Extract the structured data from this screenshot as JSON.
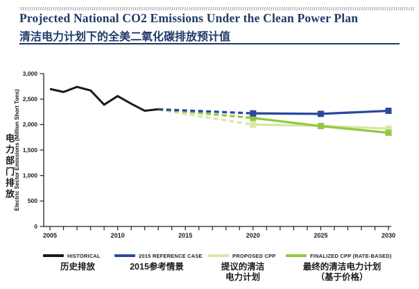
{
  "header": {
    "title": "Projected National CO2 Emissions Under the Clean Power Plan",
    "subtitle_zh": "清洁电力计划下的全美二氧化碳排放预计值",
    "accent_color": "#1e3a66"
  },
  "chart_data": {
    "type": "line",
    "title": "Projected National CO2 Emissions Under the Clean Power Plan",
    "xlabel": "",
    "ylabel_en": "Electric Sector Emissions (Million Short Tons)",
    "ylabel_zh": "电力部门排放",
    "ylim": [
      0,
      3000
    ],
    "xlim": [
      2005,
      2030
    ],
    "grid": false,
    "legend_position": "bottom",
    "y_ticks": [
      0,
      500,
      1000,
      1500,
      2000,
      2500,
      3000
    ],
    "y_tick_labels": [
      "0",
      "500",
      "1,000",
      "1,500",
      "2,000",
      "2,500",
      "3,000"
    ],
    "x_minor_tick_interval": 1,
    "x_tick_labels": [
      "2005",
      "2010",
      "2015",
      "2020",
      "2025",
      "2030"
    ],
    "series": [
      {
        "name": "PROPOSED CPP",
        "name_zh": "提议的清洁电力计划",
        "color": "#d9e6a9",
        "segments": [
          {
            "style": "dashed",
            "x": [
              2013,
              2020
            ],
            "values": [
              2290,
              2000
            ]
          },
          {
            "style": "solid",
            "x": [
              2020,
              2025,
              2030
            ],
            "values": [
              2000,
              1975,
              1920
            ]
          }
        ],
        "markers": {
          "x": [
            2020,
            2025,
            2030
          ],
          "values": [
            2000,
            1975,
            1920
          ]
        }
      },
      {
        "name": "FINALIZED CPP (RATE-BASED)",
        "name_zh": "最终的清洁电力计划（基于价格）",
        "color": "#94c83d",
        "segments": [
          {
            "style": "dashed",
            "x": [
              2013,
              2020
            ],
            "values": [
              2300,
              2130
            ]
          },
          {
            "style": "solid",
            "x": [
              2020,
              2025,
              2030
            ],
            "values": [
              2130,
              1970,
              1840
            ]
          }
        ],
        "markers": {
          "x": [
            2020,
            2025,
            2030
          ],
          "values": [
            2130,
            1970,
            1840
          ]
        }
      },
      {
        "name": "2015 REFERENCE CASE",
        "name_zh": "2015参考情景",
        "color": "#2a49a0",
        "segments": [
          {
            "style": "dashed",
            "x": [
              2013,
              2020
            ],
            "values": [
              2300,
              2220
            ]
          },
          {
            "style": "solid",
            "x": [
              2020,
              2025,
              2030
            ],
            "values": [
              2220,
              2210,
              2270
            ]
          }
        ],
        "markers": {
          "x": [
            2020,
            2025,
            2030
          ],
          "values": [
            2220,
            2210,
            2270
          ]
        }
      },
      {
        "name": "HISTORICAL",
        "name_zh": "历史排放",
        "color": "#1a1a1a",
        "segments": [
          {
            "style": "solid",
            "x": [
              2005,
              2006,
              2007,
              2008,
              2009,
              2010,
              2011,
              2012,
              2013
            ],
            "values": [
              2700,
              2640,
              2740,
              2670,
              2390,
              2560,
              2410,
              2270,
              2300
            ]
          }
        ]
      }
    ]
  },
  "legend": [
    {
      "label": "HISTORICAL",
      "label_zh": "历史排放",
      "color": "#1a1a1a"
    },
    {
      "label": "2015 REFERENCE CASE",
      "label_zh": "2015参考情景",
      "color": "#2a49a0"
    },
    {
      "label": "PROPOSED CPP",
      "label_zh": "提议的清洁\n电力计划",
      "color": "#d9e6a9"
    },
    {
      "label": "FINALIZED CPP (RATE-BASED)",
      "label_zh": "最终的清洁电力计划\n（基于价格）",
      "color": "#94c83d"
    }
  ]
}
